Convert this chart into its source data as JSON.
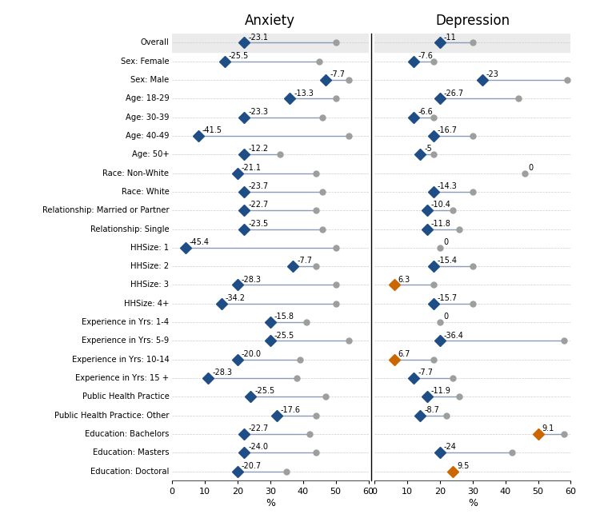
{
  "title_anxiety": "Anxiety",
  "title_depression": "Depression",
  "xlabel": "%",
  "categories": [
    "Overall",
    "Sex: Female",
    "Sex: Male",
    "Age: 18-29",
    "Age: 30-39",
    "Age: 40-49",
    "Age: 50+",
    "Race: Non-White",
    "Race: White",
    "Relationship: Married or Partner",
    "Relationship: Single",
    "HHSize: 1",
    "HHSize: 2",
    "HHSize: 3",
    "HHSize: 4+",
    "Experience in Yrs: 1-4",
    "Experience in Yrs: 5-9",
    "Experience in Yrs: 10-14",
    "Experience in Yrs: 15 +",
    "Public Health Practice",
    "Public Health Practice: Other",
    "Education: Bachelors",
    "Education: Masters",
    "Education: Doctoral"
  ],
  "anxiety": {
    "label": [
      -23.1,
      -25.5,
      -7.7,
      -13.3,
      -23.3,
      -41.5,
      -12.2,
      -21.1,
      -23.7,
      -22.7,
      -23.5,
      -45.4,
      -7.7,
      -28.3,
      -34.2,
      -15.8,
      -25.5,
      -20.0,
      -28.3,
      -25.5,
      -17.6,
      -22.7,
      -24.0,
      -20.7
    ],
    "diamond_x": [
      22,
      16,
      47,
      36,
      22,
      8,
      22,
      20,
      22,
      22,
      22,
      4,
      37,
      20,
      15,
      30,
      30,
      20,
      11,
      24,
      32,
      22,
      22,
      20
    ],
    "ci_x": [
      50,
      45,
      54,
      50,
      46,
      54,
      33,
      44,
      46,
      44,
      46,
      50,
      44,
      50,
      50,
      41,
      54,
      39,
      38,
      47,
      44,
      42,
      44,
      35
    ],
    "diamond_color": [
      "#1f4e87",
      "#1f4e87",
      "#1f4e87",
      "#1f4e87",
      "#1f4e87",
      "#1f4e87",
      "#1f4e87",
      "#1f4e87",
      "#1f4e87",
      "#1f4e87",
      "#1f4e87",
      "#1f4e87",
      "#1f4e87",
      "#1f4e87",
      "#1f4e87",
      "#1f4e87",
      "#1f4e87",
      "#1f4e87",
      "#1f4e87",
      "#1f4e87",
      "#1f4e87",
      "#1f4e87",
      "#1f4e87",
      "#1f4e87"
    ]
  },
  "depression": {
    "label": [
      -11,
      -7.6,
      -23,
      -26.7,
      -6.6,
      -16.7,
      -5,
      0,
      -14.3,
      -10.4,
      -11.8,
      0,
      -15.4,
      6.3,
      -15.7,
      0,
      -36.4,
      6.7,
      -7.7,
      -11.9,
      -8.7,
      9.1,
      -24,
      9.5
    ],
    "diamond_x": [
      20,
      12,
      33,
      20,
      12,
      18,
      14,
      null,
      18,
      16,
      16,
      null,
      18,
      6,
      18,
      null,
      20,
      6,
      12,
      16,
      14,
      50,
      20,
      24
    ],
    "ci_x": [
      30,
      18,
      59,
      44,
      18,
      30,
      18,
      null,
      30,
      24,
      26,
      null,
      30,
      18,
      30,
      null,
      58,
      18,
      24,
      26,
      22,
      58,
      42,
      null
    ],
    "zero_x": [
      null,
      null,
      null,
      null,
      null,
      null,
      null,
      46,
      null,
      null,
      null,
      20,
      null,
      null,
      null,
      20,
      null,
      null,
      null,
      null,
      null,
      null,
      null,
      null
    ],
    "diamond_color": [
      "#1f4e87",
      "#1f4e87",
      "#1f4e87",
      "#1f4e87",
      "#1f4e87",
      "#1f4e87",
      "#1f4e87",
      "#1f4e87",
      "#1f4e87",
      "#1f4e87",
      "#1f4e87",
      "#1f4e87",
      "#1f4e87",
      "#cc6600",
      "#1f4e87",
      "#1f4e87",
      "#1f4e87",
      "#cc6600",
      "#1f4e87",
      "#1f4e87",
      "#1f4e87",
      "#cc6600",
      "#1f4e87",
      "#cc6600"
    ]
  },
  "shaded_rows": [
    0
  ],
  "xmax": 60,
  "xticks": [
    0,
    10,
    20,
    30,
    40,
    50,
    60
  ],
  "line_color": "#8a9bb5",
  "ci_dot_color": "#9e9e9e",
  "zero_dot_color": "#9e9e9e",
  "bg_shade": "#ebebeb",
  "bg_white": "#ffffff"
}
